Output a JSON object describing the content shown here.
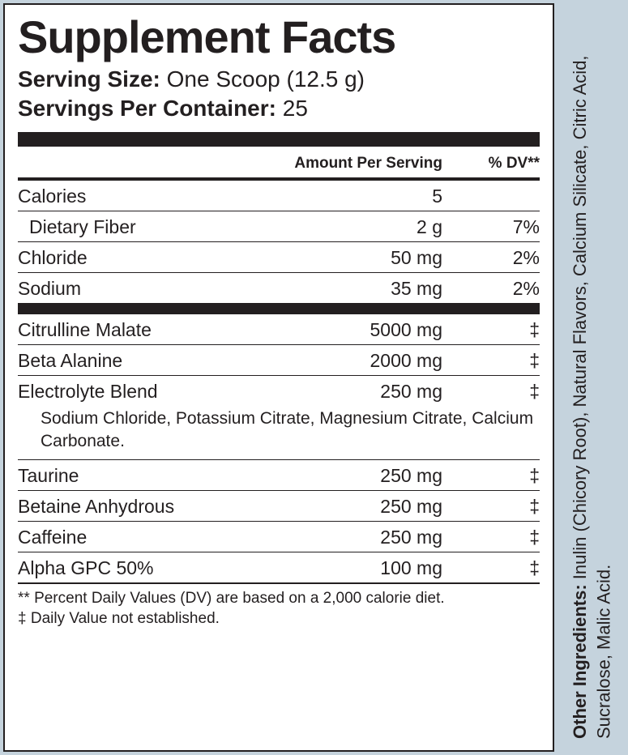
{
  "title": "Supplement Facts",
  "serving_size_label": "Serving Size:",
  "serving_size_value": "One Scoop (12.5 g)",
  "servings_per_label": "Servings Per Container:",
  "servings_per_value": "25",
  "col_amount": "Amount Per Serving",
  "col_dv": "% DV**",
  "rows_top": [
    {
      "name": "Calories",
      "amount": "5",
      "dv": "",
      "indent": false
    },
    {
      "name": "Dietary Fiber",
      "amount": "2 g",
      "dv": "7%",
      "indent": true
    },
    {
      "name": "Chloride",
      "amount": "50 mg",
      "dv": "2%",
      "indent": false
    },
    {
      "name": "Sodium",
      "amount": "35 mg",
      "dv": "2%",
      "indent": false
    }
  ],
  "rows_bottom": [
    {
      "name": "Citrulline Malate",
      "amount": "5000 mg",
      "dv": "‡"
    },
    {
      "name": "Beta Alanine",
      "amount": "2000 mg",
      "dv": "‡"
    },
    {
      "name": "Electrolyte Blend",
      "amount": "250 mg",
      "dv": "‡",
      "sub": "Sodium Chloride, Potassium Citrate, Magnesium Citrate, Calcium Carbonate."
    },
    {
      "name": "Taurine",
      "amount": "250 mg",
      "dv": "‡"
    },
    {
      "name": "Betaine Anhydrous",
      "amount": "250 mg",
      "dv": "‡"
    },
    {
      "name": "Caffeine",
      "amount": "250 mg",
      "dv": "‡"
    },
    {
      "name": "Alpha GPC 50%",
      "amount": "100 mg",
      "dv": "‡"
    }
  ],
  "footnote1": "** Percent Daily Values (DV) are based on a 2,000 calorie diet.",
  "footnote2": "‡ Daily Value not established.",
  "other_label": "Other Ingredients:",
  "other_text": " Inulin (Chicory Root), Natural Flavors, Calcium Silicate, Citric Acid, Sucralose, Malic Acid."
}
